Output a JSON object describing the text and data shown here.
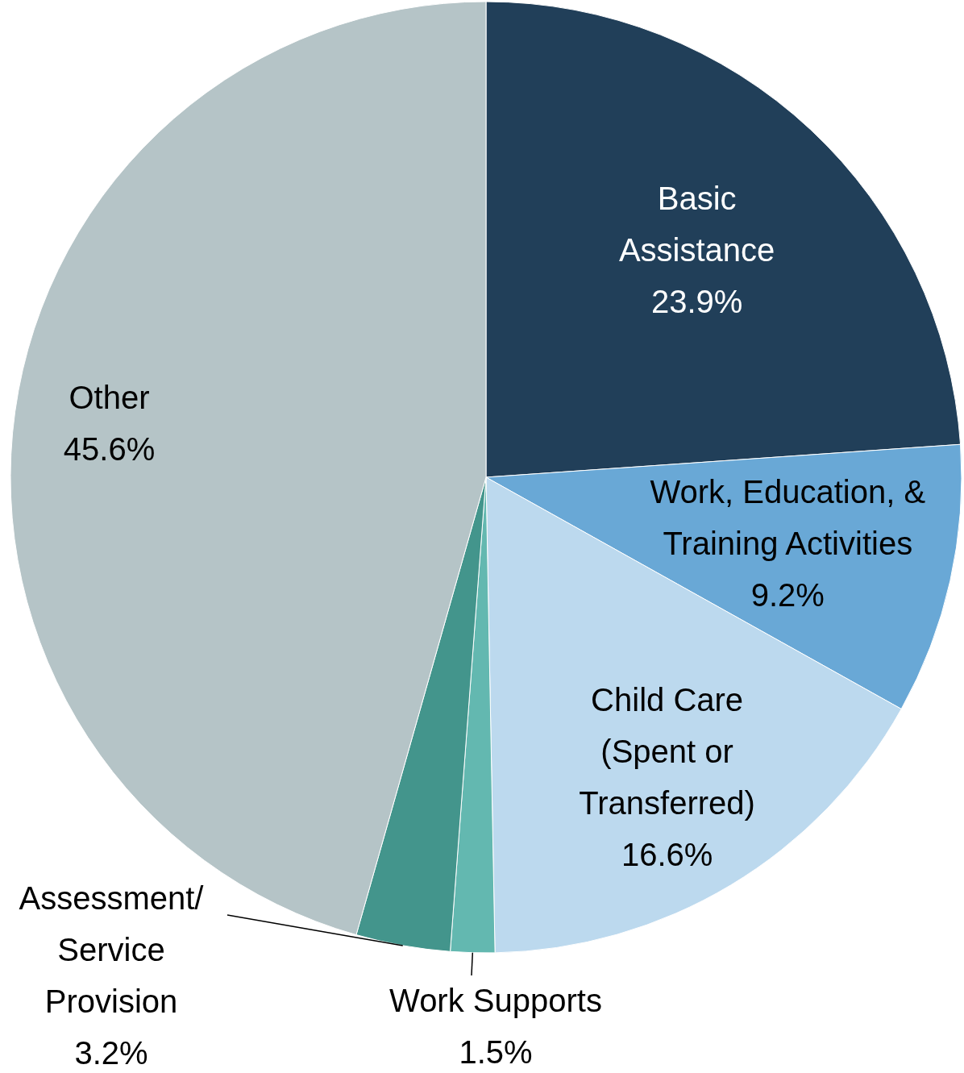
{
  "chart_data": {
    "type": "pie",
    "categories": [
      "Basic Assistance",
      "Work, Education, & Training Activities",
      "Child Care (Spent or Transferred)",
      "Work Supports",
      "Assessment/Service Provision",
      "Other"
    ],
    "values": [
      23.9,
      9.2,
      16.6,
      1.5,
      3.2,
      45.6
    ],
    "colors": [
      "#213f59",
      "#69a8d6",
      "#bcd9ee",
      "#63b8b0",
      "#43958c",
      "#b5c4c7"
    ],
    "value_labels": [
      "23.9%",
      "9.2%",
      "16.6%",
      "1.5%",
      "3.2%",
      "45.6%"
    ]
  }
}
